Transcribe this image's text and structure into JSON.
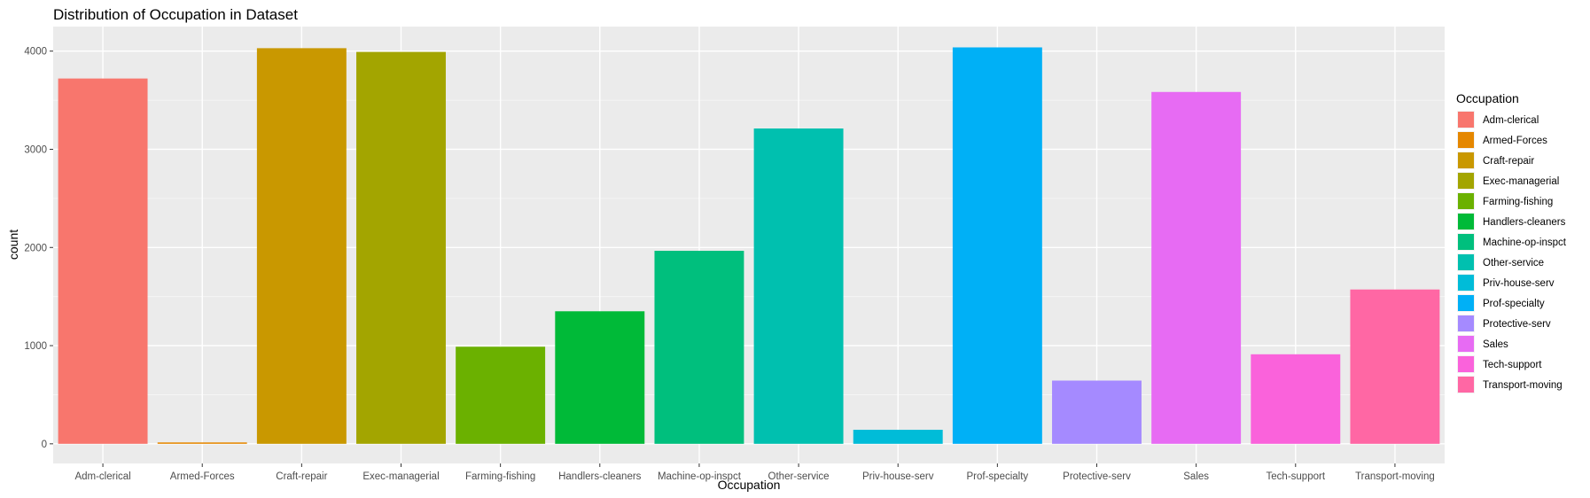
{
  "chart_data": {
    "type": "bar",
    "title": "Distribution of Occupation in Dataset",
    "xlabel": "Occupation",
    "ylabel": "count",
    "categories": [
      "Adm-clerical",
      "Armed-Forces",
      "Craft-repair",
      "Exec-managerial",
      "Farming-fishing",
      "Handlers-cleaners",
      "Machine-op-inspct",
      "Other-service",
      "Priv-house-serv",
      "Prof-specialty",
      "Protective-serv",
      "Sales",
      "Tech-support",
      "Transport-moving"
    ],
    "values": [
      3721,
      14,
      4030,
      3992,
      989,
      1350,
      1966,
      3212,
      143,
      4038,
      644,
      3584,
      912,
      1572
    ],
    "colors": [
      "#F8766D",
      "#E58700",
      "#C99800",
      "#A3A500",
      "#6BB100",
      "#00BA38",
      "#00BF7D",
      "#00C0AF",
      "#00BCD8",
      "#00B0F6",
      "#A58AFF",
      "#E76BF3",
      "#FA62DB",
      "#FF67A4"
    ],
    "ylim": [
      -200,
      4250
    ],
    "yticks": [
      0,
      1000,
      2000,
      3000,
      4000
    ],
    "ytick_labels": [
      "0",
      "1000",
      "2000",
      "3000",
      "4000"
    ],
    "grid": true,
    "legend": {
      "title": "Occupation",
      "position": "right"
    }
  }
}
